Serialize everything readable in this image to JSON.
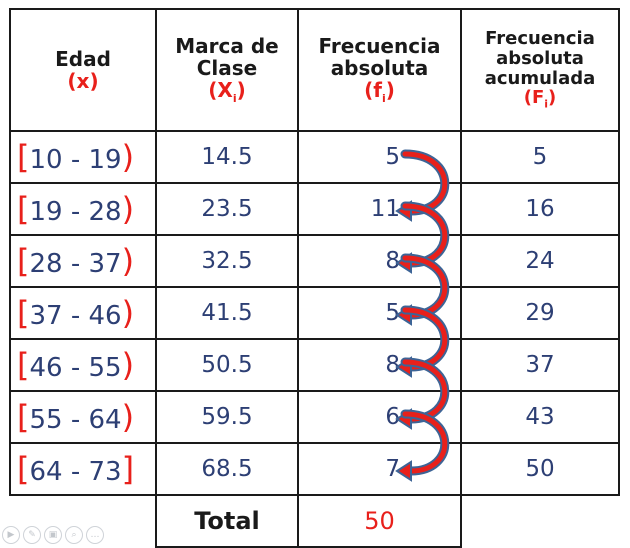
{
  "headers": {
    "edad": "Edad",
    "edad_var": "(x)",
    "marca": "Marca de Clase",
    "marca_var": "X",
    "marca_sub": "i",
    "fabs": "Frecuencia absoluta",
    "fabs_var": "f",
    "fabs_sub": "i",
    "facum": "Frecuencia absoluta acumulada",
    "facum_var": "F",
    "facum_sub": "i"
  },
  "rows": [
    {
      "open": "[",
      "interval": "10 - 19",
      "close": ")",
      "mark": "14.5",
      "fi": "5",
      "Fi": "5"
    },
    {
      "open": "[",
      "interval": "19 - 28",
      "close": ")",
      "mark": "23.5",
      "fi": "11",
      "Fi": "16"
    },
    {
      "open": "[",
      "interval": "28 - 37",
      "close": ")",
      "mark": "32.5",
      "fi": "8",
      "Fi": "24"
    },
    {
      "open": "[",
      "interval": "37 - 46",
      "close": ")",
      "mark": "41.5",
      "fi": "5",
      "Fi": "29"
    },
    {
      "open": "[",
      "interval": "46 - 55",
      "close": ")",
      "mark": "50.5",
      "fi": "8",
      "Fi": "37"
    },
    {
      "open": "[",
      "interval": "55 - 64",
      "close": ")",
      "mark": "59.5",
      "fi": "6",
      "Fi": "43"
    },
    {
      "open": "[",
      "interval": "64 - 73",
      "close": "]",
      "mark": "68.5",
      "fi": "7",
      "Fi": "50"
    }
  ],
  "total": {
    "label": "Total",
    "value": "50"
  },
  "colors": {
    "red": "#e8201b",
    "navy": "#2d3f74",
    "arrow_outline": "#3d6496"
  },
  "toolbar_icons": [
    "play-icon",
    "pen-icon",
    "image-icon",
    "zoom-icon",
    "more-icon"
  ]
}
